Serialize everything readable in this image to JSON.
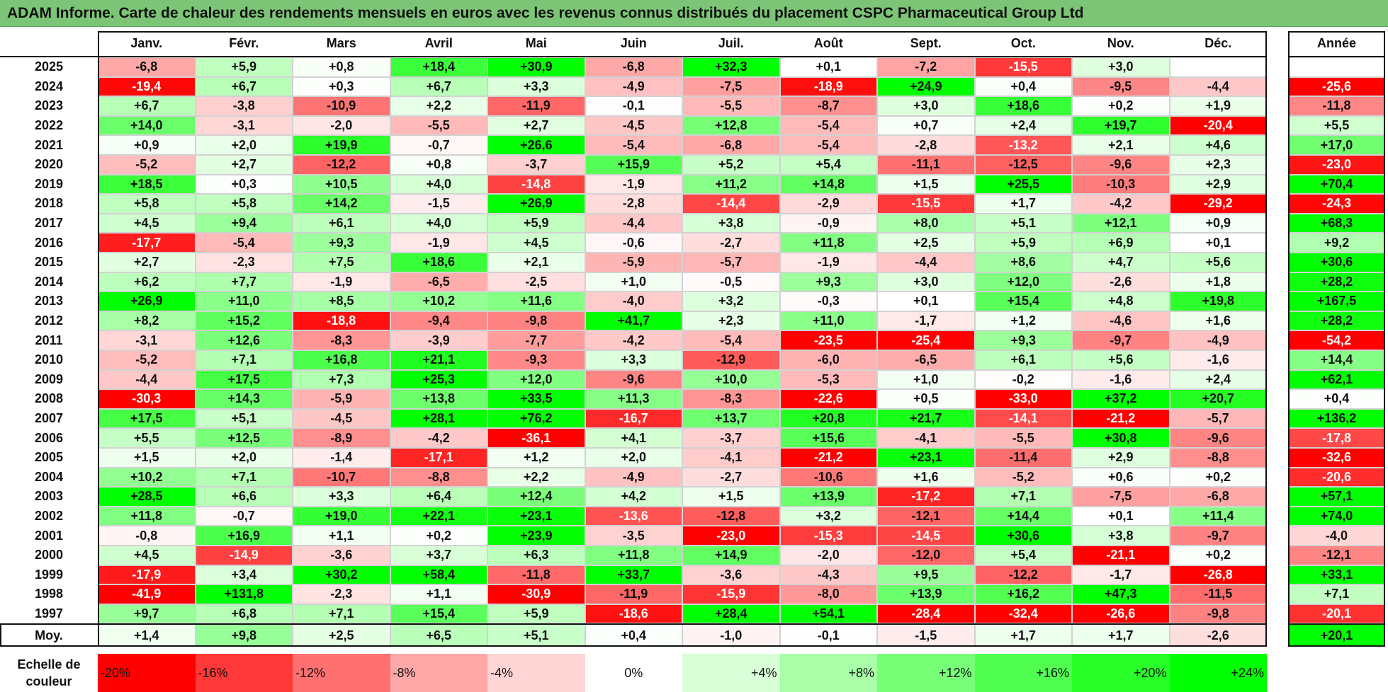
{
  "title": "ADAM Informe. Carte de chaleur des rendements mensuels en euros avec les revenus connus distribués du placement CSPC Pharmaceutical Group Ltd",
  "chart_data": {
    "type": "heatmap",
    "months": [
      "Janv.",
      "Févr.",
      "Mars",
      "Avril",
      "Mai",
      "Juin",
      "Juil.",
      "Août",
      "Sept.",
      "Oct.",
      "Nov.",
      "Déc."
    ],
    "year_header": "Année",
    "rows": [
      {
        "year": "2025",
        "values": [
          "-6,8",
          "+5,9",
          "+0,8",
          "+18,4",
          "+30,9",
          "-6,8",
          "+32,3",
          "+0,1",
          "-7,2",
          "-15,5",
          "+3,0",
          ""
        ],
        "annual": ""
      },
      {
        "year": "2024",
        "values": [
          "-19,4",
          "+6,7",
          "+0,3",
          "+6,7",
          "+3,3",
          "-4,9",
          "-7,5",
          "-18,9",
          "+24,9",
          "+0,4",
          "-9,5",
          "-4,4"
        ],
        "annual": "-25,6"
      },
      {
        "year": "2023",
        "values": [
          "+6,7",
          "-3,8",
          "-10,9",
          "+2,2",
          "-11,9",
          "-0,1",
          "-5,5",
          "-8,7",
          "+3,0",
          "+18,6",
          "+0,2",
          "+1,9"
        ],
        "annual": "-11,8"
      },
      {
        "year": "2022",
        "values": [
          "+14,0",
          "-3,1",
          "-2,0",
          "-5,5",
          "+2,7",
          "-4,5",
          "+12,8",
          "-5,4",
          "+0,7",
          "+2,4",
          "+19,7",
          "-20,4"
        ],
        "annual": "+5,5"
      },
      {
        "year": "2021",
        "values": [
          "+0,9",
          "+2,0",
          "+19,9",
          "-0,7",
          "+26,6",
          "-5,4",
          "-6,8",
          "-5,4",
          "-2,8",
          "-13,2",
          "+2,1",
          "+4,6"
        ],
        "annual": "+17,0"
      },
      {
        "year": "2020",
        "values": [
          "-5,2",
          "+2,7",
          "-12,2",
          "+0,8",
          "-3,7",
          "+15,9",
          "+5,2",
          "+5,4",
          "-11,1",
          "-12,5",
          "-9,6",
          "+2,3"
        ],
        "annual": "-23,0"
      },
      {
        "year": "2019",
        "values": [
          "+18,5",
          "+0,3",
          "+10,5",
          "+4,0",
          "-14,8",
          "-1,9",
          "+11,2",
          "+14,8",
          "+1,5",
          "+25,5",
          "-10,3",
          "+2,9"
        ],
        "annual": "+70,4"
      },
      {
        "year": "2018",
        "values": [
          "+5,8",
          "+5,8",
          "+14,2",
          "-1,5",
          "+26,9",
          "-2,8",
          "-14,4",
          "-2,9",
          "-15,5",
          "+1,7",
          "-4,2",
          "-29,2"
        ],
        "annual": "-24,3"
      },
      {
        "year": "2017",
        "values": [
          "+4,5",
          "+9,4",
          "+6,1",
          "+4,0",
          "+5,9",
          "-4,4",
          "+3,8",
          "-0,9",
          "+8,0",
          "+5,1",
          "+12,1",
          "+0,9"
        ],
        "annual": "+68,3"
      },
      {
        "year": "2016",
        "values": [
          "-17,7",
          "-5,4",
          "+9,3",
          "-1,9",
          "+4,5",
          "-0,6",
          "-2,7",
          "+11,8",
          "+2,5",
          "+5,9",
          "+6,9",
          "+0,1"
        ],
        "annual": "+9,2"
      },
      {
        "year": "2015",
        "values": [
          "+2,7",
          "-2,3",
          "+7,5",
          "+18,6",
          "+2,1",
          "-5,9",
          "-5,7",
          "-1,9",
          "-4,4",
          "+8,6",
          "+4,7",
          "+5,6"
        ],
        "annual": "+30,6"
      },
      {
        "year": "2014",
        "values": [
          "+6,2",
          "+7,7",
          "-1,9",
          "-6,5",
          "-2,5",
          "+1,0",
          "-0,5",
          "+9,3",
          "+3,0",
          "+12,0",
          "-2,6",
          "+1,8"
        ],
        "annual": "+28,2"
      },
      {
        "year": "2013",
        "values": [
          "+26,9",
          "+11,0",
          "+8,5",
          "+10,2",
          "+11,6",
          "-4,0",
          "+3,2",
          "-0,3",
          "+0,1",
          "+15,4",
          "+4,8",
          "+19,8"
        ],
        "annual": "+167,5"
      },
      {
        "year": "2012",
        "values": [
          "+8,2",
          "+15,2",
          "-18,8",
          "-9,4",
          "-9,8",
          "+41,7",
          "+2,3",
          "+11,0",
          "-1,7",
          "+1,2",
          "-4,6",
          "+1,6"
        ],
        "annual": "+28,2"
      },
      {
        "year": "2011",
        "values": [
          "-3,1",
          "+12,6",
          "-8,3",
          "-3,9",
          "-7,7",
          "-4,2",
          "-5,4",
          "-23,5",
          "-25,4",
          "+9,3",
          "-9,7",
          "-4,9"
        ],
        "annual": "-54,2"
      },
      {
        "year": "2010",
        "values": [
          "-5,2",
          "+7,1",
          "+16,8",
          "+21,1",
          "-9,3",
          "+3,3",
          "-12,9",
          "-6,0",
          "-6,5",
          "+6,1",
          "+5,6",
          "-1,6"
        ],
        "annual": "+14,4"
      },
      {
        "year": "2009",
        "values": [
          "-4,4",
          "+17,5",
          "+7,3",
          "+25,3",
          "+12,0",
          "-9,6",
          "+10,0",
          "-5,3",
          "+1,0",
          "-0,2",
          "-1,6",
          "+2,4"
        ],
        "annual": "+62,1"
      },
      {
        "year": "2008",
        "values": [
          "-30,3",
          "+14,3",
          "-5,9",
          "+13,8",
          "+33,5",
          "+11,3",
          "-8,3",
          "-22,6",
          "+0,5",
          "-33,0",
          "+37,2",
          "+20,7"
        ],
        "annual": "+0,4"
      },
      {
        "year": "2007",
        "values": [
          "+17,5",
          "+5,1",
          "-4,5",
          "+28,1",
          "+76,2",
          "-16,7",
          "+13,7",
          "+20,8",
          "+21,7",
          "-14,1",
          "-21,2",
          "-5,7"
        ],
        "annual": "+136,2"
      },
      {
        "year": "2006",
        "values": [
          "+5,5",
          "+12,5",
          "-8,9",
          "-4,2",
          "-36,1",
          "+4,1",
          "-3,7",
          "+15,6",
          "-4,1",
          "-5,5",
          "+30,8",
          "-9,6"
        ],
        "annual": "-17,8"
      },
      {
        "year": "2005",
        "values": [
          "+1,5",
          "+2,0",
          "-1,4",
          "-17,1",
          "+1,2",
          "+2,0",
          "-4,1",
          "-21,2",
          "+23,1",
          "-11,4",
          "+2,9",
          "-8,8"
        ],
        "annual": "-32,6"
      },
      {
        "year": "2004",
        "values": [
          "+10,2",
          "+7,1",
          "-10,7",
          "-8,8",
          "+2,2",
          "-4,9",
          "-2,7",
          "-10,6",
          "+1,6",
          "-5,2",
          "+0,6",
          "+0,2"
        ],
        "annual": "-20,6"
      },
      {
        "year": "2003",
        "values": [
          "+28,5",
          "+6,6",
          "+3,3",
          "+6,4",
          "+12,4",
          "+4,2",
          "+1,5",
          "+13,9",
          "-17,2",
          "+7,1",
          "-7,5",
          "-6,8"
        ],
        "annual": "+57,1"
      },
      {
        "year": "2002",
        "values": [
          "+11,8",
          "-0,7",
          "+19,0",
          "+22,1",
          "+23,1",
          "-13,6",
          "-12,8",
          "+3,2",
          "-12,1",
          "+14,4",
          "+0,1",
          "+11,4"
        ],
        "annual": "+74,0"
      },
      {
        "year": "2001",
        "values": [
          "-0,8",
          "+16,9",
          "+1,1",
          "+0,2",
          "+23,9",
          "-3,5",
          "-23,0",
          "-15,3",
          "-14,5",
          "+30,6",
          "+3,8",
          "-9,7"
        ],
        "annual": "-4,0"
      },
      {
        "year": "2000",
        "values": [
          "+4,5",
          "-14,9",
          "-3,6",
          "+3,7",
          "+6,3",
          "+11,8",
          "+14,9",
          "-2,0",
          "-12,0",
          "+5,4",
          "-21,1",
          "+0,2"
        ],
        "annual": "-12,1"
      },
      {
        "year": "1999",
        "values": [
          "-17,9",
          "+3,4",
          "+30,2",
          "+58,4",
          "-11,8",
          "+33,7",
          "-3,6",
          "-4,3",
          "+9,5",
          "-12,2",
          "-1,7",
          "-26,8"
        ],
        "annual": "+33,1"
      },
      {
        "year": "1998",
        "values": [
          "-41,9",
          "+131,8",
          "-2,3",
          "+1,1",
          "-30,9",
          "-11,9",
          "-15,9",
          "-8,0",
          "+13,9",
          "+16,2",
          "+47,3",
          "-11,5"
        ],
        "annual": "+7,1"
      },
      {
        "year": "1997",
        "values": [
          "+9,7",
          "+6,8",
          "+7,1",
          "+15,4",
          "+5,9",
          "-18,6",
          "+28,4",
          "+54,1",
          "-28,4",
          "-32,4",
          "-26,6",
          "-9,8"
        ],
        "annual": "-20,1"
      }
    ],
    "average": {
      "label": "Moy.",
      "values": [
        "+1,4",
        "+9,8",
        "+2,5",
        "+6,5",
        "+5,1",
        "+0,4",
        "-1,0",
        "-0,1",
        "-1,5",
        "+1,7",
        "+1,7",
        "-2,6"
      ],
      "annual": "+20,1"
    },
    "color_scale": {
      "label": "Echelle de couleur",
      "steps": [
        "-20%",
        "-16%",
        "-12%",
        "-8%",
        "-4%",
        "0%",
        "+4%",
        "+8%",
        "+12%",
        "+16%",
        "+20%",
        "+24%"
      ],
      "colors": [
        "#ff0000",
        "#ff3838",
        "#ff7070",
        "#ffa8a8",
        "#ffd4d4",
        "#ffffff",
        "#d9ffd9",
        "#a8ffa8",
        "#78ff78",
        "#50ff50",
        "#28ff28",
        "#00ff00"
      ]
    }
  }
}
